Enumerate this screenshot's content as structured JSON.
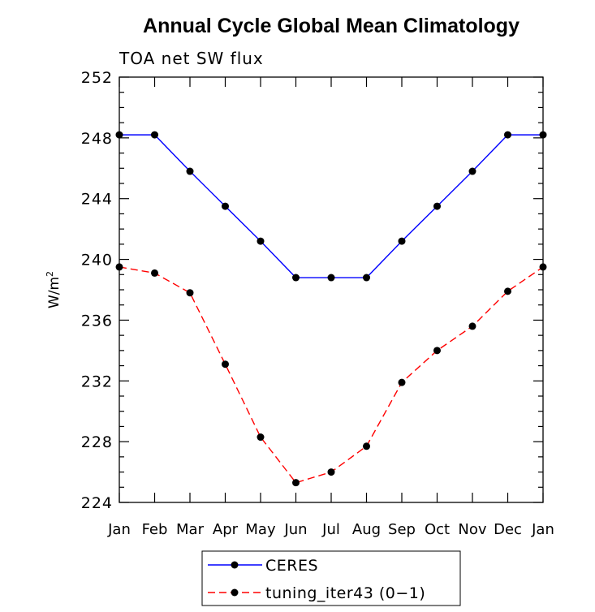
{
  "chart_data": {
    "type": "line",
    "title": "Annual Cycle Global Mean Climatology",
    "subtitle": "TOA net SW flux",
    "ylabel": "W/m",
    "ylabel_sup": "2",
    "ylim": [
      224,
      252
    ],
    "yticks": [
      "224",
      "228",
      "232",
      "236",
      "240",
      "244",
      "248",
      "252"
    ],
    "categories": [
      "Jan",
      "Feb",
      "Mar",
      "Apr",
      "May",
      "Jun",
      "Jul",
      "Aug",
      "Sep",
      "Oct",
      "Nov",
      "Dec",
      "Jan"
    ],
    "grid": false,
    "legend_position": "bottom-center",
    "series": [
      {
        "name": "CERES",
        "color": "#0000ff",
        "dashed": false,
        "values": [
          248.2,
          248.2,
          245.8,
          243.5,
          241.2,
          238.8,
          238.8,
          238.8,
          241.2,
          243.5,
          245.8,
          248.2,
          248.2
        ]
      },
      {
        "name": "tuning_iter43 (0−1)",
        "color": "#ff0000",
        "dashed": true,
        "values": [
          239.5,
          239.1,
          237.8,
          233.1,
          228.3,
          225.3,
          226.0,
          227.7,
          231.9,
          234.0,
          235.6,
          237.9,
          239.5
        ]
      }
    ]
  }
}
